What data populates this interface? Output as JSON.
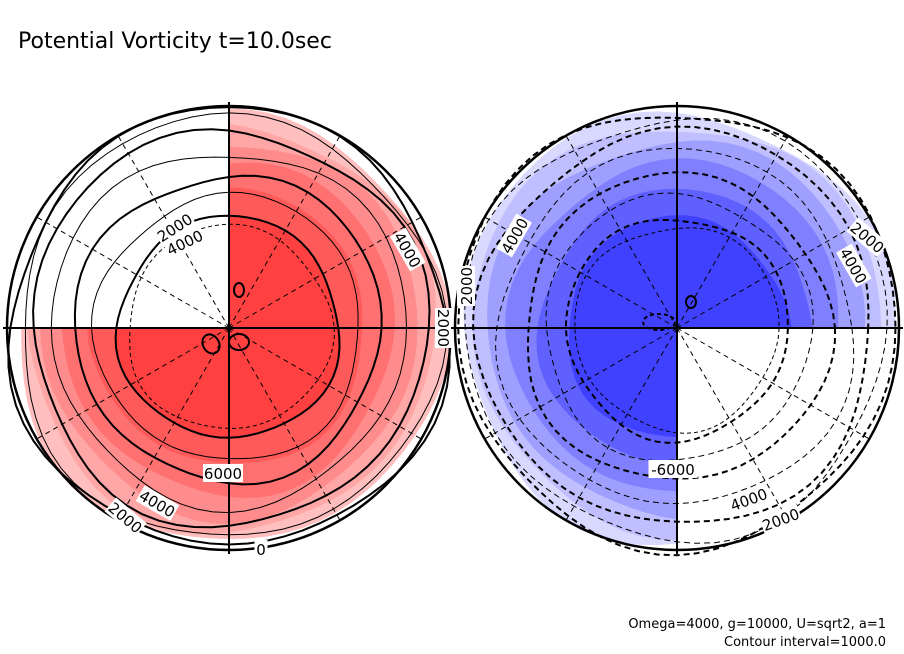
{
  "chart_data": {
    "type": "polar-contour",
    "title": "Potential Vorticity t=10.0sec",
    "notes": [
      "Omega=4000, g=10000, U=sqrt2, a=1",
      "Contour interval=1000.0"
    ],
    "panels": [
      {
        "name": "left-hemisphere",
        "fill_color": "#ff4040",
        "levels": [
          0,
          1000,
          2000,
          3000,
          4000,
          5000,
          6000,
          7000
        ],
        "labels": [
          {
            "text": "2000",
            "angle": -33
          },
          {
            "text": "4000",
            "angle": -26
          },
          {
            "text": "4000",
            "angle": 60
          },
          {
            "text": "2000",
            "angle": 90
          },
          {
            "text": "6000",
            "angle": 0
          },
          {
            "text": "4000",
            "angle": 30
          },
          {
            "text": "2000",
            "angle": 40
          },
          {
            "text": "0",
            "angle": 0
          }
        ]
      },
      {
        "name": "right-hemisphere",
        "fill_color": "#4040ff",
        "levels": [
          0,
          -1000,
          -2000,
          -3000,
          -4000,
          -5000,
          -6000,
          -7000
        ],
        "labels": [
          {
            "text": "4000",
            "angle": -60
          },
          {
            "text": "2000",
            "angle": -90
          },
          {
            "text": "2000",
            "angle": 40
          },
          {
            "text": "4000",
            "angle": 60
          },
          {
            "text": "-6000",
            "angle": 0
          },
          {
            "text": "4000",
            "angle": -20
          },
          {
            "text": "2000",
            "angle": -20
          }
        ]
      }
    ]
  }
}
